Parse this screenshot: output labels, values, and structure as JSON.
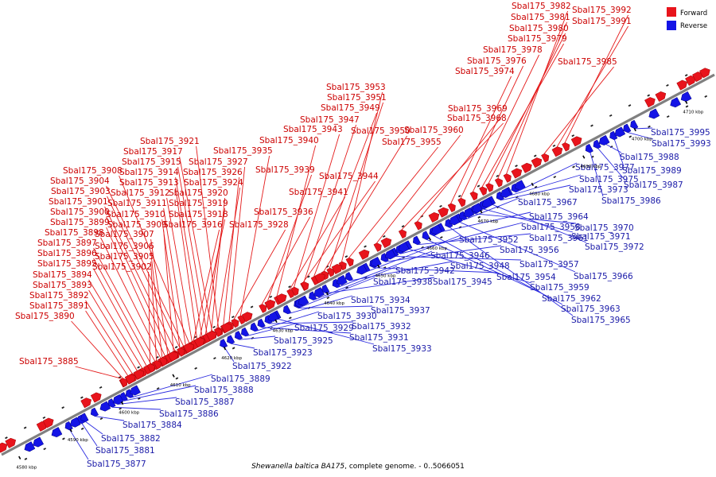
{
  "caption": {
    "italic": "Shewanella baltica BA175",
    "rest": ", complete genome. - 0..5066051"
  },
  "legend": {
    "forward": "Forward",
    "reverse": "Reverse"
  },
  "colors": {
    "forward": "#e8141c",
    "reverse": "#1414e6",
    "axis": "#808080"
  },
  "axis": {
    "start_kbp": 4577.5,
    "end_kbp": 4716.5
  },
  "ticks": [
    "4580 kbp",
    "4590 kbp",
    "4600 kbp",
    "4610 kbp",
    "4620 kbp",
    "4630 kbp",
    "4640 kbp",
    "4650 kbp",
    "4660 kbp",
    "4670 kbp",
    "4680 kbp",
    "4690 kbp",
    "4700 kbp",
    "4710 kbp"
  ],
  "forward_labels": [
    "Sbal175_3885",
    "Sbal175_3890",
    "Sbal175_3891",
    "Sbal175_3892",
    "Sbal175_3893",
    "Sbal175_3894",
    "Sbal175_3895",
    "Sbal175_3896",
    "Sbal175_3897",
    "Sbal175_3898",
    "Sbal175_3899",
    "Sbal175_3900",
    "Sbal175_3901",
    "Sbal175_3903",
    "Sbal175_3904",
    "Sbal175_3908",
    "Sbal175_3902",
    "Sbal175_3905",
    "Sbal175_3906",
    "Sbal175_3907",
    "Sbal175_3909",
    "Sbal175_3910",
    "Sbal175_3911",
    "Sbal175_3912",
    "Sbal175_3913",
    "Sbal175_3914",
    "Sbal175_3915",
    "Sbal175_3917",
    "Sbal175_3921",
    "Sbal175_3916",
    "Sbal175_3918",
    "Sbal175_3919",
    "Sbal175_3920",
    "Sbal175_3924",
    "Sbal175_3926",
    "Sbal175_3927",
    "Sbal175_3935",
    "Sbal175_3928",
    "Sbal175_3936",
    "Sbal175_3939",
    "Sbal175_3940",
    "Sbal175_3941",
    "Sbal175_3944",
    "Sbal175_3943",
    "Sbal175_3947",
    "Sbal175_3949",
    "Sbal175_3950",
    "Sbal175_3951",
    "Sbal175_3953",
    "Sbal175_3955",
    "Sbal175_3960",
    "Sbal175_3968",
    "Sbal175_3969",
    "Sbal175_3974",
    "Sbal175_3976",
    "Sbal175_3978",
    "Sbal175_3979",
    "Sbal175_3980",
    "Sbal175_3981",
    "Sbal175_3982",
    "Sbal175_3985",
    "Sbal175_3991",
    "Sbal175_3992"
  ],
  "reverse_labels": [
    "Sbal175_3877",
    "Sbal175_3881",
    "Sbal175_3882",
    "Sbal175_3884",
    "Sbal175_3886",
    "Sbal175_3887",
    "Sbal175_3888",
    "Sbal175_3889",
    "Sbal175_3922",
    "Sbal175_3923",
    "Sbal175_3925",
    "Sbal175_3929",
    "Sbal175_3930",
    "Sbal175_3931",
    "Sbal175_3932",
    "Sbal175_3933",
    "Sbal175_3934",
    "Sbal175_3937",
    "Sbal175_3938",
    "Sbal175_3942",
    "Sbal175_3945",
    "Sbal175_3946",
    "Sbal175_3948",
    "Sbal175_3952",
    "Sbal175_3954",
    "Sbal175_3956",
    "Sbal175_3957",
    "Sbal175_3958",
    "Sbal175_3959",
    "Sbal175_3961",
    "Sbal175_3962",
    "Sbal175_3963",
    "Sbal175_3964",
    "Sbal175_3965",
    "Sbal175_3966",
    "Sbal175_3967",
    "Sbal175_3970",
    "Sbal175_3971",
    "Sbal175_3972",
    "Sbal175_3973",
    "Sbal175_3975",
    "Sbal175_3977",
    "Sbal175_3986",
    "Sbal175_3987",
    "Sbal175_3988",
    "Sbal175_3989",
    "Sbal175_3993",
    "Sbal175_3995"
  ]
}
